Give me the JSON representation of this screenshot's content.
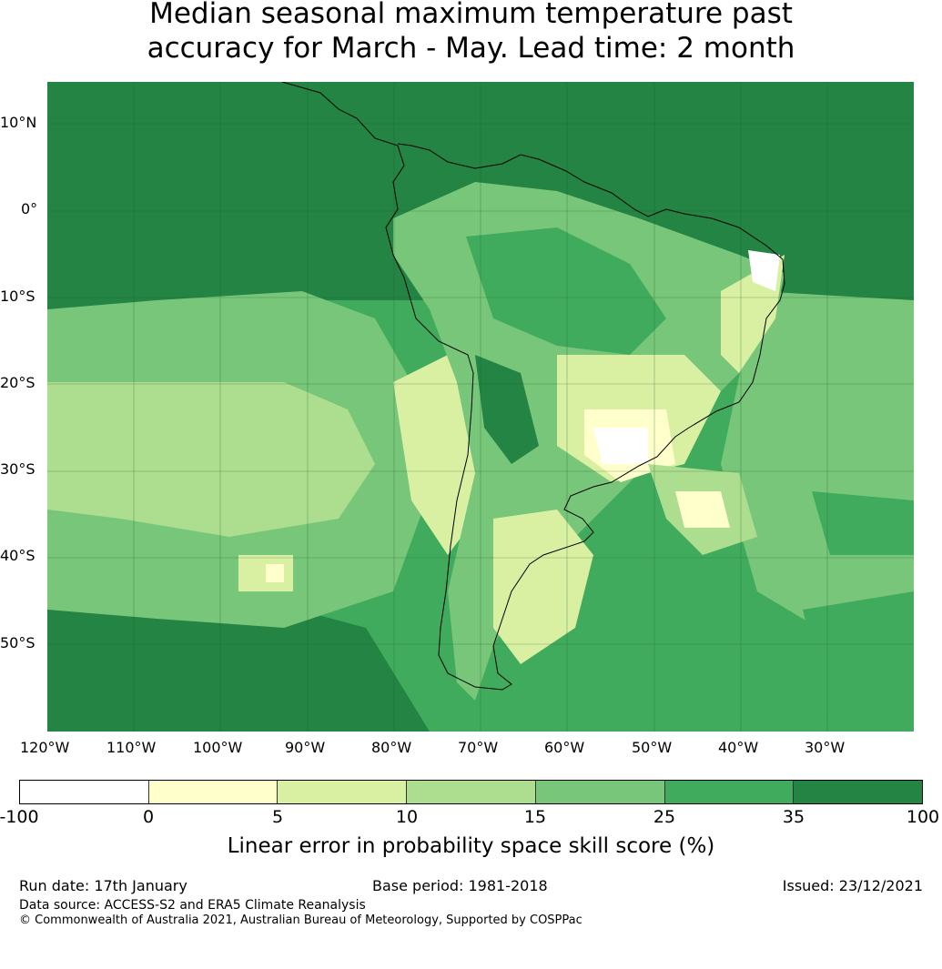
{
  "title_line1": "Median seasonal maximum temperature past",
  "title_line2": "accuracy for March - May. Lead time: 2 month",
  "lat_labels": [
    "10°N",
    "0°",
    "10°S",
    "20°S",
    "30°S",
    "40°S",
    "50°S"
  ],
  "lon_labels": [
    "120°W",
    "110°W",
    "100°W",
    "90°W",
    "80°W",
    "70°W",
    "60°W",
    "50°W",
    "40°W",
    "30°W"
  ],
  "colorbar": {
    "ticks": [
      "-100",
      "0",
      "5",
      "10",
      "15",
      "25",
      "35",
      "100"
    ],
    "colors": [
      "#ffffff",
      "#ffffcc",
      "#d9f0a3",
      "#addd8e",
      "#78c679",
      "#41ab5d",
      "#238443"
    ],
    "label": "Linear error in probability space skill score (%)"
  },
  "footer": {
    "run_date": "Run date: 17th January",
    "base_period": "Base period: 1981-2018",
    "issued": "Issued: 23/12/2021",
    "data_source": "Data source: ACCESS-S2 and ERA5 Climate Reanalysis",
    "copyright": "© Commonwealth of Australia 2021, Australian Bureau of Meteorology, Supported by COSPPac"
  }
}
